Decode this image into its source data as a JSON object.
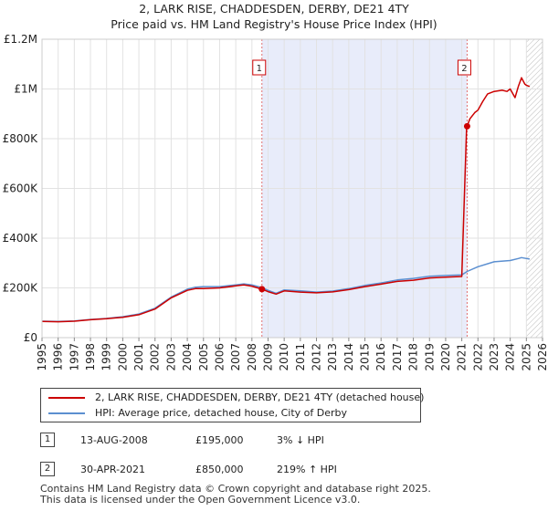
{
  "chart_data": {
    "type": "line",
    "title": "2, LARK RISE, CHADDESDEN, DERBY, DE21 4TY",
    "subtitle": "Price paid vs. HM Land Registry's House Price Index (HPI)",
    "xlim": [
      1995,
      2026
    ],
    "ylim": [
      0,
      1200000
    ],
    "x_ticks": [
      "1995",
      "1996",
      "1997",
      "1998",
      "1999",
      "2000",
      "2001",
      "2002",
      "2003",
      "2004",
      "2005",
      "2006",
      "2007",
      "2008",
      "2009",
      "2010",
      "2011",
      "2012",
      "2013",
      "2014",
      "2015",
      "2016",
      "2017",
      "2018",
      "2019",
      "2020",
      "2021",
      "2022",
      "2023",
      "2024",
      "2025",
      "2026"
    ],
    "y_ticks": [
      {
        "value": 0,
        "label": "£0"
      },
      {
        "value": 200000,
        "label": "£200K"
      },
      {
        "value": 400000,
        "label": "£400K"
      },
      {
        "value": 600000,
        "label": "£600K"
      },
      {
        "value": 800000,
        "label": "£800K"
      },
      {
        "value": 1000000,
        "label": "£1M"
      },
      {
        "value": 1200000,
        "label": "£1.2M"
      }
    ],
    "grid": true,
    "shaded_period": {
      "from": 2008.62,
      "to": 2021.33
    },
    "future_hatch_from": 2025.0,
    "series": [
      {
        "name": "2, LARK RISE, CHADDESDEN, DERBY, DE21 4TY (detached house)",
        "color": "#cc0000",
        "x": [
          1995.0,
          1996.0,
          1997.0,
          1998.0,
          1999.0,
          2000.0,
          2001.0,
          2002.0,
          2003.0,
          2004.0,
          2004.5,
          2005.0,
          2006.0,
          2007.0,
          2007.5,
          2008.0,
          2008.62,
          2009.0,
          2009.5,
          2010.0,
          2011.0,
          2012.0,
          2013.0,
          2014.0,
          2015.0,
          2016.0,
          2017.0,
          2018.0,
          2019.0,
          2020.0,
          2021.0,
          2021.3,
          2021.33,
          2021.5,
          2021.8,
          2022.0,
          2022.3,
          2022.6,
          2023.0,
          2023.5,
          2023.8,
          2024.0,
          2024.3,
          2024.5,
          2024.7,
          2024.9,
          2025.0,
          2025.2
        ],
        "y": [
          65000,
          64000,
          66000,
          72000,
          76000,
          82000,
          92000,
          115000,
          160000,
          190000,
          197000,
          197000,
          200000,
          208000,
          212000,
          207000,
          195000,
          185000,
          175000,
          188000,
          183000,
          180000,
          184000,
          193000,
          205000,
          215000,
          226000,
          231000,
          240000,
          243000,
          246000,
          848000,
          850000,
          880000,
          905000,
          915000,
          950000,
          980000,
          990000,
          995000,
          990000,
          1000000,
          965000,
          1010000,
          1045000,
          1020000,
          1015000,
          1010000
        ]
      },
      {
        "name": "HPI: Average price, detached house, City of Derby",
        "color": "#5b8fd0",
        "x": [
          1995.0,
          1996.0,
          1997.0,
          1998.0,
          1999.0,
          2000.0,
          2001.0,
          2002.0,
          2003.0,
          2004.0,
          2004.5,
          2005.0,
          2006.0,
          2007.0,
          2007.5,
          2008.0,
          2008.62,
          2009.0,
          2009.5,
          2010.0,
          2011.0,
          2012.0,
          2013.0,
          2014.0,
          2015.0,
          2016.0,
          2017.0,
          2018.0,
          2019.0,
          2020.0,
          2021.0,
          2021.33,
          2022.0,
          2023.0,
          2024.0,
          2024.5,
          2024.7,
          2025.0,
          2025.2
        ],
        "y": [
          66000,
          65000,
          67000,
          73000,
          77000,
          84000,
          95000,
          118000,
          163000,
          195000,
          203000,
          205000,
          205000,
          212000,
          216000,
          212000,
          201000,
          190000,
          178000,
          192000,
          188000,
          183000,
          187000,
          197000,
          210000,
          220000,
          232000,
          238000,
          247000,
          250000,
          252000,
          266000,
          285000,
          305000,
          310000,
          318000,
          322000,
          318000,
          316000
        ]
      }
    ],
    "annotations": [
      {
        "label": "1",
        "x": 2008.62,
        "y": 195000
      },
      {
        "label": "2",
        "x": 2021.33,
        "y": 850000
      }
    ]
  },
  "legend": {
    "property_line": "2, LARK RISE, CHADDESDEN, DERBY, DE21 4TY (detached house)",
    "hpi_line": "HPI: Average price, detached house, City of Derby"
  },
  "sales": [
    {
      "num": "1",
      "date": "13-AUG-2008",
      "price": "£195,000",
      "hpi": "3% ↓ HPI"
    },
    {
      "num": "2",
      "date": "30-APR-2021",
      "price": "£850,000",
      "hpi": "219% ↑ HPI"
    }
  ],
  "footer": {
    "line1": "Contains HM Land Registry data © Crown copyright and database right 2025.",
    "line2": "This data is licensed under the Open Government Licence v3.0."
  }
}
